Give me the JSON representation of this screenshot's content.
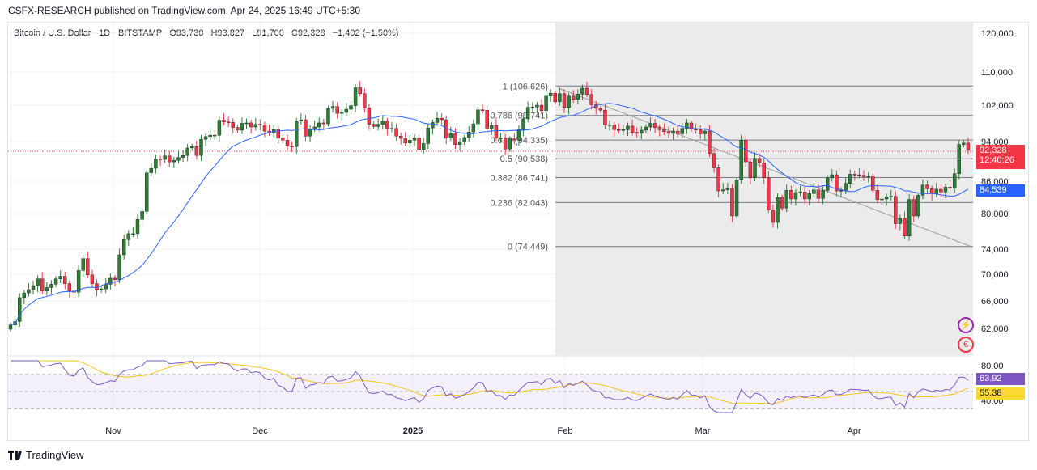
{
  "header": {
    "text": "CSFX-RESEARCH published on TradingView.com, Apr 24, 2025 16:49 UTC+5:30"
  },
  "legend": {
    "symbol": "Bitcoin / U.S. Dollar · 1D · BITSTAMP",
    "open": "O93,730",
    "high": "H93,827",
    "low": "L91,700",
    "close": "C92,328",
    "change": "−1,402 (−1.50%)"
  },
  "price_tags": {
    "last_price": "92,328",
    "countdown": "12:40:26",
    "ma_value": "84,539",
    "rsi_value": "63.92",
    "rsi_ma_value": "55.38"
  },
  "colors": {
    "up": "#089981",
    "down": "#f23645",
    "up_fill": "#2e7d32",
    "ma": "#2962ff",
    "rsi": "#7e57c2",
    "rsi_ma": "#fdd835",
    "fib_zone": "#e8e8e8"
  },
  "footer": {
    "brand": "TradingView"
  },
  "chart_data": [
    {
      "type": "candlestick",
      "title": "Bitcoin / U.S. Dollar · 1D · BITSTAMP",
      "y_axis_ticks": [
        "120,000",
        "110,000",
        "102,000",
        "94,000",
        "86,000",
        "80,000",
        "74,000",
        "70,000",
        "66,000",
        "62,000"
      ],
      "x_axis_labels": [
        "Nov",
        "Dec",
        "2025",
        "Feb",
        "Mar",
        "Apr"
      ],
      "fibonacci_retracement": [
        {
          "label": "1 (106,626)",
          "value": 106626
        },
        {
          "label": "0.786 (99,741)",
          "value": 99741
        },
        {
          "label": "0.618 (94,335)",
          "value": 94335
        },
        {
          "label": "0.5 (90,538)",
          "value": 90538
        },
        {
          "label": "0.382 (86,741)",
          "value": 86741
        },
        {
          "label": "0.236 (82,043)",
          "value": 82043
        },
        {
          "label": "0 (74,449)",
          "value": 74449
        }
      ],
      "closes": [
        62500,
        63000,
        66500,
        67200,
        67700,
        68300,
        69300,
        67500,
        68000,
        68500,
        69300,
        69700,
        68600,
        67500,
        67300,
        70600,
        72500,
        69900,
        68600,
        67600,
        67800,
        68500,
        69400,
        69200,
        73100,
        75600,
        76600,
        76600,
        79000,
        80400,
        87700,
        88600,
        90500,
        90400,
        91100,
        89900,
        90200,
        90800,
        91200,
        92700,
        93000,
        91200,
        94500,
        95100,
        95400,
        95400,
        98700,
        98300,
        98200,
        97100,
        96500,
        98000,
        98100,
        97200,
        97800,
        97600,
        96300,
        95900,
        96600,
        94800,
        94300,
        93100,
        93000,
        98500,
        98800,
        95200,
        96800,
        97200,
        98100,
        97900,
        101300,
        101700,
        100200,
        100400,
        101100,
        101900,
        106200,
        104800,
        101400,
        97800,
        97300,
        97800,
        98500,
        96800,
        96900,
        95200,
        94700,
        93700,
        94300,
        94800,
        92400,
        93600,
        97000,
        98200,
        99100,
        98800,
        94800,
        95800,
        93400,
        93900,
        94900,
        96100,
        97900,
        101000,
        100900,
        96800,
        97500,
        94800,
        94800,
        92500,
        94600,
        94300,
        96600,
        99000,
        101500,
        101600,
        102000,
        100800,
        104200,
        104900,
        102800,
        104800,
        101500,
        104200,
        103400,
        104700,
        106100,
        104600,
        102100,
        101300,
        100900,
        97600,
        97700,
        96600,
        96500,
        96600,
        97400,
        96000,
        95800,
        96500,
        97200,
        98000,
        97100,
        96600,
        96200,
        95800,
        96300,
        95700,
        96900,
        98100,
        96700,
        96600,
        95700,
        96300,
        91600,
        88700,
        84200,
        84400,
        84700,
        79600,
        86300,
        94300,
        89900,
        86700,
        90600,
        89700,
        86700,
        80700,
        78500,
        83000,
        81000,
        84300,
        82700,
        83900,
        84000,
        82700,
        83700,
        84400,
        82800,
        84300,
        86700,
        87300,
        84200,
        84300,
        85600,
        87400,
        87300,
        87200,
        86900,
        87000,
        84300,
        82600,
        82700,
        83100,
        83200,
        78300,
        79200,
        76200,
        82600,
        79600,
        83400,
        85300,
        84600,
        83700,
        84500,
        84000,
        84900,
        84700,
        87500,
        93400,
        93700,
        92300
      ],
      "moving_average": {
        "last_value": 84539
      },
      "last_price": 92328
    },
    {
      "type": "line",
      "title": "RSI",
      "y_axis_ticks": [
        "80.00",
        "40.00"
      ],
      "series": [
        {
          "values": [
            63.92
          ]
        },
        {
          "values": [
            55.38
          ]
        }
      ]
    }
  ]
}
